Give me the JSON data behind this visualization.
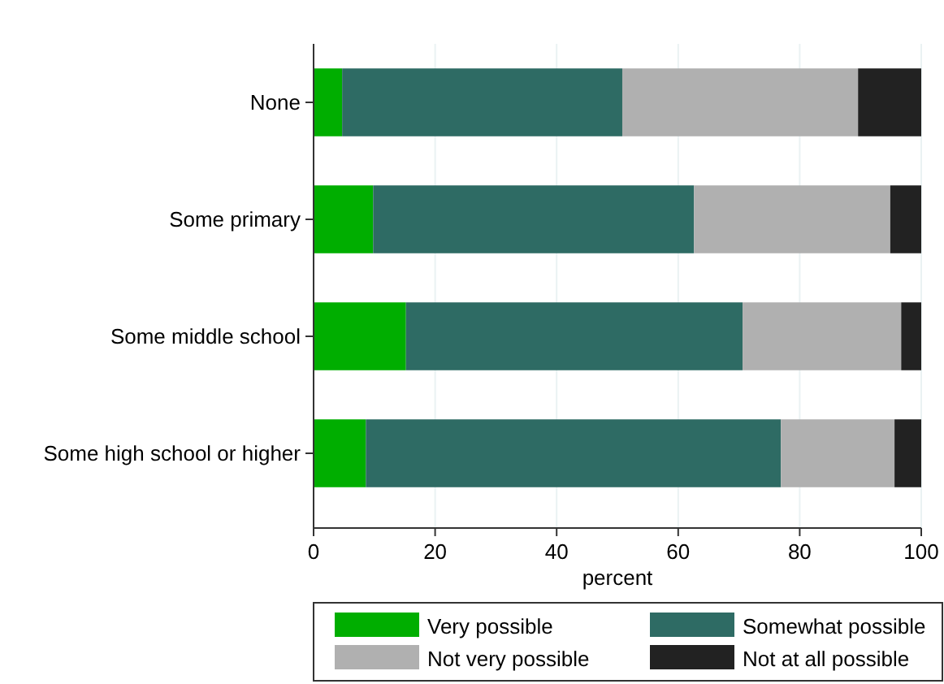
{
  "chart_data": {
    "type": "bar",
    "orientation": "horizontal",
    "stacked": true,
    "categories": [
      "None",
      "Some primary",
      "Some middle school",
      "Some high school or higher"
    ],
    "series": [
      {
        "name": "Very possible",
        "color": "#00ae00",
        "values": [
          4.7,
          9.8,
          15.2,
          8.6
        ]
      },
      {
        "name": "Somewhat possible",
        "color": "#2e6b64",
        "values": [
          46.1,
          52.8,
          55.4,
          68.3
        ]
      },
      {
        "name": "Not very possible",
        "color": "#b0b0b0",
        "values": [
          38.8,
          32.3,
          26.1,
          18.7
        ]
      },
      {
        "name": "Not at all possible",
        "color": "#222222",
        "values": [
          10.4,
          5.1,
          3.3,
          4.4
        ]
      }
    ],
    "xlim": [
      0,
      100
    ],
    "xticks": [
      0,
      20,
      40,
      60,
      80,
      100
    ],
    "xlabel": "percent",
    "grid": "x",
    "legend": "bottom"
  }
}
